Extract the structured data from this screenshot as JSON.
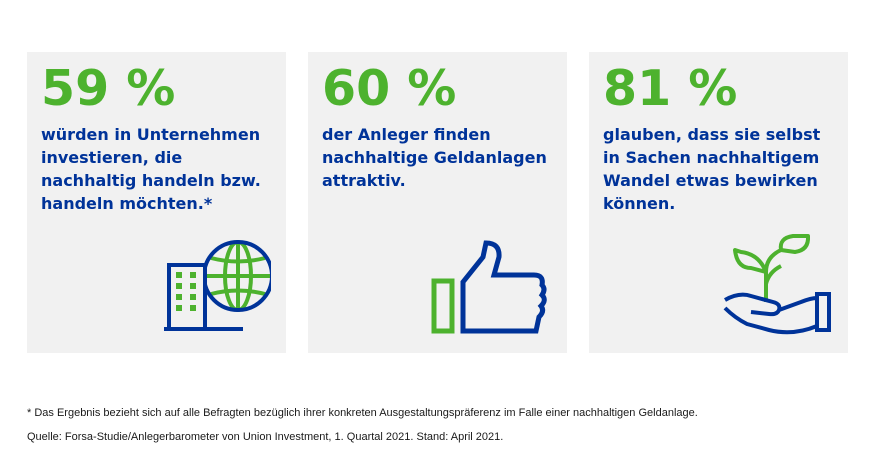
{
  "colors": {
    "green": "#4db22e",
    "blue": "#003399",
    "card_bg": "#f1f1f1"
  },
  "cards": [
    {
      "percent": "59 %",
      "text": "würden in Unternehmen investieren, die nachhaltig handeln bzw. handeln möchten.*",
      "icon": "building-globe-icon"
    },
    {
      "percent": "60 %",
      "text": "der Anleger finden nachhaltige Geldanlagen attraktiv.",
      "icon": "thumbs-up-icon"
    },
    {
      "percent": "81 %",
      "text": "glauben, dass sie selbst in Sachen nachhaltigem Wandel etwas bewirken können.",
      "icon": "hand-plant-icon"
    }
  ],
  "footnote": "* Das Ergebnis bezieht sich auf alle Befragten bezüglich ihrer konkreten Ausgestaltungspräferenz im Falle einer nachhaltigen Geldanlage.",
  "source": "Quelle: Forsa-Studie/Anlegerbarometer von Union Investment, 1. Quartal 2021. Stand: April 2021."
}
